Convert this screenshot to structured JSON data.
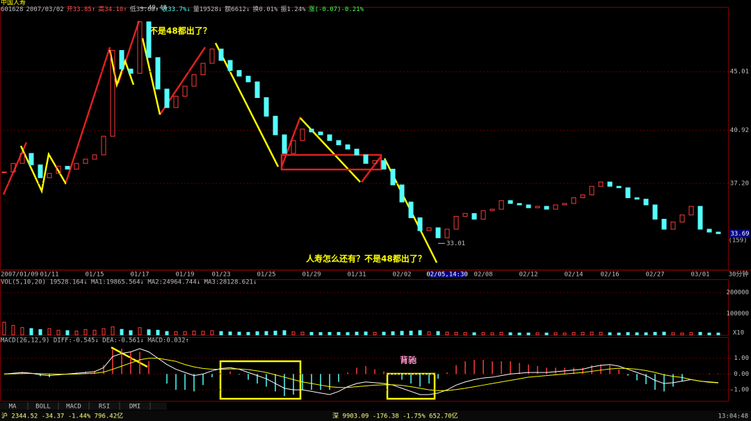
{
  "stock_name": "中国人寿",
  "quote": [
    "601628",
    "2007/03/02",
    "开33.85↑",
    "高34.10↑",
    "低33.68↑",
    "收33.7%↓",
    "量19528↓",
    "额6612↓",
    "换0.01%",
    "振1.24%",
    "涨(-0.07)-0.21%"
  ],
  "quote_colors": [
    "#c0c0c0",
    "#c0c0c0",
    "#ff5050",
    "#ff5050",
    "#c0c0c0",
    "#54ffff",
    "#c0c0c0",
    "#c0c0c0",
    "#c0c0c0",
    "#c0c0c0",
    "#54ff54"
  ],
  "annotations": [
    "不是48都出了？",
    "人寿怎么还有？不是48都出了？",
    "背驰"
  ],
  "period_label": "30分钟",
  "position_label": "(159)",
  "chart_data": {
    "type": "candlestick",
    "categories": [
      null,
      "2007/01/09",
      null,
      null,
      null,
      "01/11",
      null,
      null,
      null,
      null,
      "01/15",
      null,
      null,
      null,
      null,
      "01/17",
      null,
      null,
      null,
      null,
      "01/19",
      null,
      null,
      null,
      "01/23",
      null,
      null,
      null,
      null,
      "01/25",
      null,
      null,
      null,
      null,
      "01/29",
      null,
      null,
      null,
      null,
      "01/31",
      null,
      null,
      null,
      null,
      "02/02",
      null,
      null,
      null,
      null,
      "02/05,14:30",
      null,
      null,
      null,
      "02/08",
      null,
      null,
      null,
      null,
      "02/12",
      null,
      null,
      null,
      null,
      "02/14",
      null,
      null,
      null,
      "02/16",
      null,
      null,
      null,
      null,
      "02/27",
      null,
      null,
      null,
      null,
      "03/01",
      null,
      null
    ],
    "close": [
      38.0,
      38.6,
      39.3,
      38.5,
      37.6,
      37.9,
      38.4,
      38.2,
      38.6,
      38.9,
      39.2,
      40.5,
      46.5,
      45.2,
      44.9,
      48.5,
      46.0,
      43.8,
      42.5,
      43.3,
      44.0,
      44.8,
      45.6,
      46.6,
      45.8,
      45.1,
      44.7,
      44.3,
      43.2,
      41.9,
      40.6,
      39.3,
      40.2,
      41.0,
      40.8,
      40.6,
      40.2,
      39.9,
      39.6,
      39.2,
      38.6,
      38.8,
      38.2,
      37.1,
      35.9,
      34.8,
      33.9,
      34.1,
      33.4,
      34.0,
      34.9,
      35.1,
      34.7,
      35.3,
      35.4,
      36.0,
      35.8,
      35.7,
      35.5,
      35.6,
      35.4,
      35.7,
      35.8,
      36.2,
      36.4,
      37.0,
      37.3,
      37.0,
      36.9,
      36.2,
      36.1,
      35.7,
      34.7,
      34.0,
      34.5,
      35.0,
      35.6,
      34.0,
      33.8,
      33.69
    ],
    "up_color": "#ff3c3c",
    "down_color": "#54ffff",
    "ylim": [
      31.18,
      49.49
    ],
    "yticks": [
      {
        "value": 37.2,
        "label": "37.20"
      },
      40.92,
      45.01
    ],
    "high": 49.48,
    "low": 33.01,
    "last_price": 33.69,
    "volume": {
      "title": "VOL(5,10,20) 19528.164↓ MA1:19865.564↓ MA2:24964.744↓ MA3:28128.621↓",
      "values": [
        60000,
        45000,
        35000,
        30000,
        25000,
        30000,
        22000,
        20000,
        18000,
        25000,
        22000,
        30000,
        38000,
        26000,
        20000,
        34000,
        24000,
        22000,
        16000,
        15000,
        16000,
        18000,
        17000,
        20000,
        16000,
        14000,
        13000,
        12000,
        15000,
        16000,
        18000,
        20000,
        14000,
        13000,
        12000,
        11000,
        12000,
        12000,
        11000,
        13000,
        14000,
        12000,
        13000,
        15000,
        17000,
        18000,
        20000,
        14000,
        16000,
        13000,
        12000,
        11000,
        10000,
        11000,
        10000,
        12000,
        10000,
        9000,
        9000,
        10000,
        9000,
        10000,
        9000,
        11000,
        12000,
        13000,
        12000,
        10000,
        9000,
        11000,
        10000,
        10000,
        12000,
        13000,
        10000,
        9000,
        11000,
        12000,
        9000,
        9000
      ],
      "ylim": [
        0,
        260000
      ],
      "yticks": [
        100000,
        200000
      ],
      "unit_label": "X10"
    },
    "macd": {
      "title": "MACD(26,12,9) DIFF:-0.545↓ DEA:-0.561↓ MACD:0.032↑",
      "diff": [
        0.0,
        0.05,
        0.1,
        0.05,
        -0.05,
        -0.1,
        -0.05,
        0.0,
        0.05,
        0.1,
        0.15,
        0.4,
        1.1,
        1.3,
        1.4,
        1.6,
        1.4,
        1.0,
        0.6,
        0.3,
        0.1,
        -0.1,
        0.0,
        0.2,
        0.35,
        0.4,
        0.3,
        0.1,
        -0.1,
        -0.3,
        -0.6,
        -0.9,
        -1.0,
        -1.0,
        -1.1,
        -1.2,
        -1.3,
        -1.1,
        -0.8,
        -0.6,
        -0.5,
        -0.55,
        -0.6,
        -0.7,
        -0.9,
        -1.1,
        -1.3,
        -1.3,
        -1.2,
        -1.0,
        -0.7,
        -0.5,
        -0.35,
        -0.25,
        -0.2,
        -0.1,
        0.0,
        0.05,
        0.1,
        0.1,
        0.1,
        0.15,
        0.2,
        0.25,
        0.3,
        0.45,
        0.55,
        0.6,
        0.5,
        0.3,
        0.1,
        -0.1,
        -0.4,
        -0.6,
        -0.55,
        -0.45,
        -0.35,
        -0.45,
        -0.5,
        -0.545
      ],
      "dea": [
        0.0,
        0.01,
        0.03,
        0.04,
        0.02,
        0.0,
        -0.01,
        -0.01,
        0.0,
        0.02,
        0.05,
        0.12,
        0.3,
        0.5,
        0.7,
        0.9,
        1.0,
        1.0,
        0.9,
        0.8,
        0.6,
        0.45,
        0.35,
        0.3,
        0.3,
        0.32,
        0.32,
        0.28,
        0.2,
        0.1,
        -0.05,
        -0.2,
        -0.35,
        -0.5,
        -0.6,
        -0.7,
        -0.8,
        -0.85,
        -0.85,
        -0.8,
        -0.75,
        -0.7,
        -0.68,
        -0.68,
        -0.72,
        -0.8,
        -0.9,
        -1.0,
        -1.05,
        -1.05,
        -0.98,
        -0.9,
        -0.8,
        -0.7,
        -0.6,
        -0.5,
        -0.4,
        -0.3,
        -0.2,
        -0.15,
        -0.1,
        -0.05,
        0.0,
        0.05,
        0.1,
        0.17,
        0.25,
        0.32,
        0.36,
        0.35,
        0.3,
        0.22,
        0.1,
        -0.05,
        -0.15,
        -0.22,
        -0.35,
        -0.45,
        -0.52,
        -0.561
      ],
      "hist": [
        0,
        0.08,
        0.14,
        0.02,
        -0.14,
        -0.2,
        -0.08,
        0.02,
        0.1,
        0.16,
        0.2,
        0.56,
        1.6,
        1.6,
        1.4,
        1.4,
        0.8,
        0,
        -0.6,
        -1.0,
        -1.0,
        -1.1,
        -0.7,
        -0.2,
        0.1,
        0.16,
        -0.04,
        -0.36,
        -0.6,
        -0.8,
        -1.1,
        -1.4,
        -1.3,
        -1.0,
        -1.0,
        -1.0,
        -1.0,
        -0.5,
        0.1,
        0.4,
        0.5,
        0.3,
        0.16,
        -0.04,
        -0.36,
        -0.6,
        -0.8,
        -0.6,
        -0.3,
        0.1,
        0.56,
        0.8,
        0.9,
        0.9,
        0.8,
        0.8,
        0.8,
        0.7,
        0.6,
        0.5,
        0.4,
        0.4,
        0.4,
        0.4,
        0.4,
        0.56,
        0.6,
        0.56,
        0.28,
        -0.1,
        -0.4,
        -0.64,
        -1.0,
        -1.1,
        -0.8,
        -0.46,
        0,
        0,
        0.04,
        0.032
      ],
      "diff_color": "#ffffff",
      "dea_color": "#ffff00",
      "ylim": [
        -1.74,
        2.3
      ],
      "yticks": [
        {
          "value": 1,
          "label": "1.00"
        },
        {
          "value": 0,
          "label": "0.00"
        },
        {
          "value": -1,
          "label": "-1.00"
        }
      ]
    },
    "tabs": [
      "MA",
      "BOLL",
      "MACD",
      "RSI",
      "DMI"
    ]
  },
  "status_bar": {
    "sh": "沪 2344.52 -34.37 -1.44% 796.42亿",
    "sz": "深 9903.09 -176.38 -1.75% 652.70亿",
    "time": "13:04:48"
  }
}
